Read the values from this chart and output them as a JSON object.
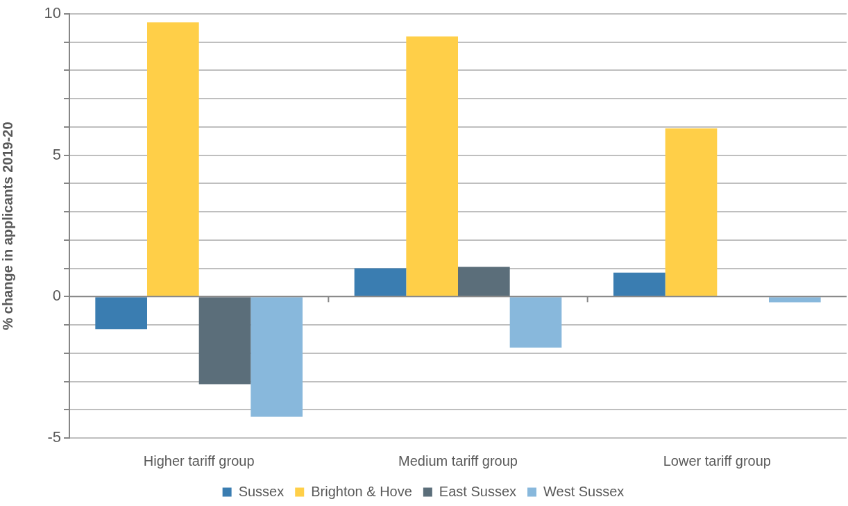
{
  "chart_data": {
    "type": "bar",
    "ylabel": "% change in applicants 2019-20",
    "categories": [
      "Higher tariff group",
      "Medium tariff group",
      "Lower tariff group"
    ],
    "series": [
      {
        "name": "Sussex",
        "color": "#3a7db1",
        "values": [
          -1.15,
          1.0,
          0.85
        ]
      },
      {
        "name": "Brighton & Hove",
        "color": "#ffcf48",
        "values": [
          9.7,
          9.2,
          5.95
        ]
      },
      {
        "name": "East Sussex",
        "color": "#5b6e7a",
        "values": [
          -3.1,
          1.05,
          0
        ]
      },
      {
        "name": "West Sussex",
        "color": "#88b8dc",
        "values": [
          -4.25,
          -1.8,
          -0.2
        ]
      }
    ],
    "ylim": [
      -5,
      10
    ],
    "yticks": [
      -5,
      {
        "value": -4,
        "label": null
      },
      {
        "value": -3,
        "label": null
      },
      {
        "value": -2,
        "label": null
      },
      {
        "value": -1,
        "label": null
      },
      0,
      {
        "value": 1,
        "label": null
      },
      {
        "value": 2,
        "label": null
      },
      {
        "value": 3,
        "label": null
      },
      {
        "value": 4,
        "label": null
      },
      5,
      {
        "value": 6,
        "label": null
      },
      {
        "value": 7,
        "label": null
      },
      {
        "value": 8,
        "label": null
      },
      {
        "value": 9,
        "label": null
      },
      10
    ],
    "grid": "y",
    "legend": "bottom"
  }
}
